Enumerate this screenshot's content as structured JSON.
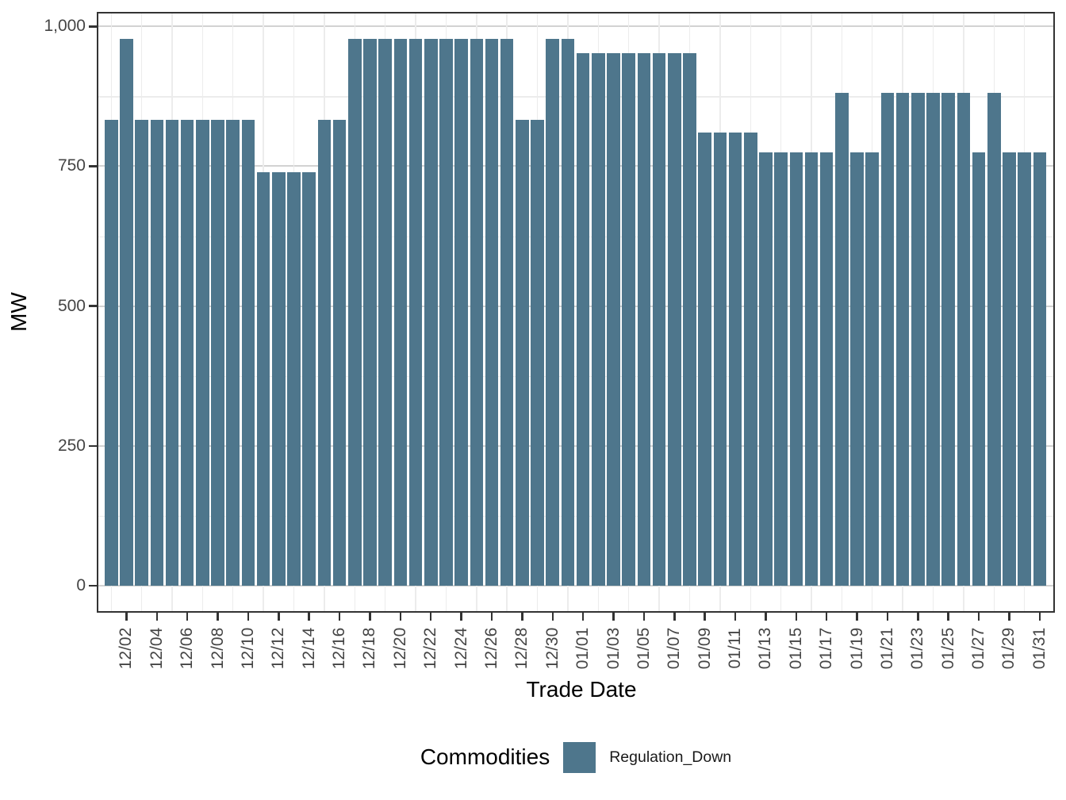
{
  "chart_data": {
    "type": "bar",
    "title": "",
    "xlabel": "Trade Date",
    "ylabel": "MW",
    "categories": [
      "12/01",
      "12/02",
      "12/03",
      "12/04",
      "12/05",
      "12/06",
      "12/07",
      "12/08",
      "12/09",
      "12/10",
      "12/11",
      "12/12",
      "12/13",
      "12/14",
      "12/15",
      "12/16",
      "12/17",
      "12/18",
      "12/19",
      "12/20",
      "12/21",
      "12/22",
      "12/23",
      "12/24",
      "12/25",
      "12/26",
      "12/27",
      "12/28",
      "12/29",
      "12/30",
      "12/31",
      "01/01",
      "01/02",
      "01/03",
      "01/04",
      "01/05",
      "01/06",
      "01/07",
      "01/08",
      "01/09",
      "01/10",
      "01/11",
      "01/12",
      "01/13",
      "01/14",
      "01/15",
      "01/16",
      "01/17",
      "01/18",
      "01/19",
      "01/20",
      "01/21",
      "01/22",
      "01/23",
      "01/24",
      "01/25",
      "01/26",
      "01/27",
      "01/28",
      "01/29",
      "01/30",
      "01/31"
    ],
    "values": [
      833,
      978,
      833,
      833,
      833,
      833,
      833,
      833,
      833,
      833,
      740,
      740,
      740,
      740,
      833,
      833,
      978,
      978,
      978,
      978,
      978,
      978,
      978,
      978,
      978,
      978,
      978,
      833,
      833,
      978,
      978,
      952,
      952,
      952,
      952,
      952,
      952,
      952,
      952,
      810,
      810,
      810,
      810,
      775,
      775,
      775,
      775,
      775,
      881,
      775,
      775,
      881,
      881,
      881,
      881,
      881,
      881,
      775,
      881,
      775,
      775,
      775
    ],
    "series_name": "Regulation_Down",
    "ylim": [
      0,
      1000
    ],
    "yticks": [
      0,
      250,
      500,
      750,
      1000
    ],
    "ytick_labels": [
      "0",
      "250",
      "500",
      "750",
      "1,000"
    ],
    "ytick_minor": [
      125,
      375,
      625,
      875
    ],
    "xtick_labels": [
      "12/02",
      "12/04",
      "12/06",
      "12/08",
      "12/10",
      "12/12",
      "12/14",
      "12/16",
      "12/18",
      "12/20",
      "12/22",
      "12/24",
      "12/26",
      "12/28",
      "12/30",
      "01/01",
      "01/03",
      "01/05",
      "01/07",
      "01/09",
      "01/11",
      "01/13",
      "01/15",
      "01/17",
      "01/19",
      "01/21",
      "01/23",
      "01/25",
      "01/27",
      "01/29",
      "01/31"
    ],
    "grid": true,
    "legend_position": "bottom"
  },
  "legend": {
    "title": "Commodities",
    "items": [
      {
        "label": "Regulation_Down",
        "color": "#4E768C"
      }
    ]
  },
  "colors": {
    "bar": "#4E768C",
    "grid_major": "#d2d2d2",
    "grid_minor": "#ececec",
    "panel_border": "#333333",
    "tick": "#333333",
    "tick_text": "#454545",
    "title_text": "#000000"
  }
}
